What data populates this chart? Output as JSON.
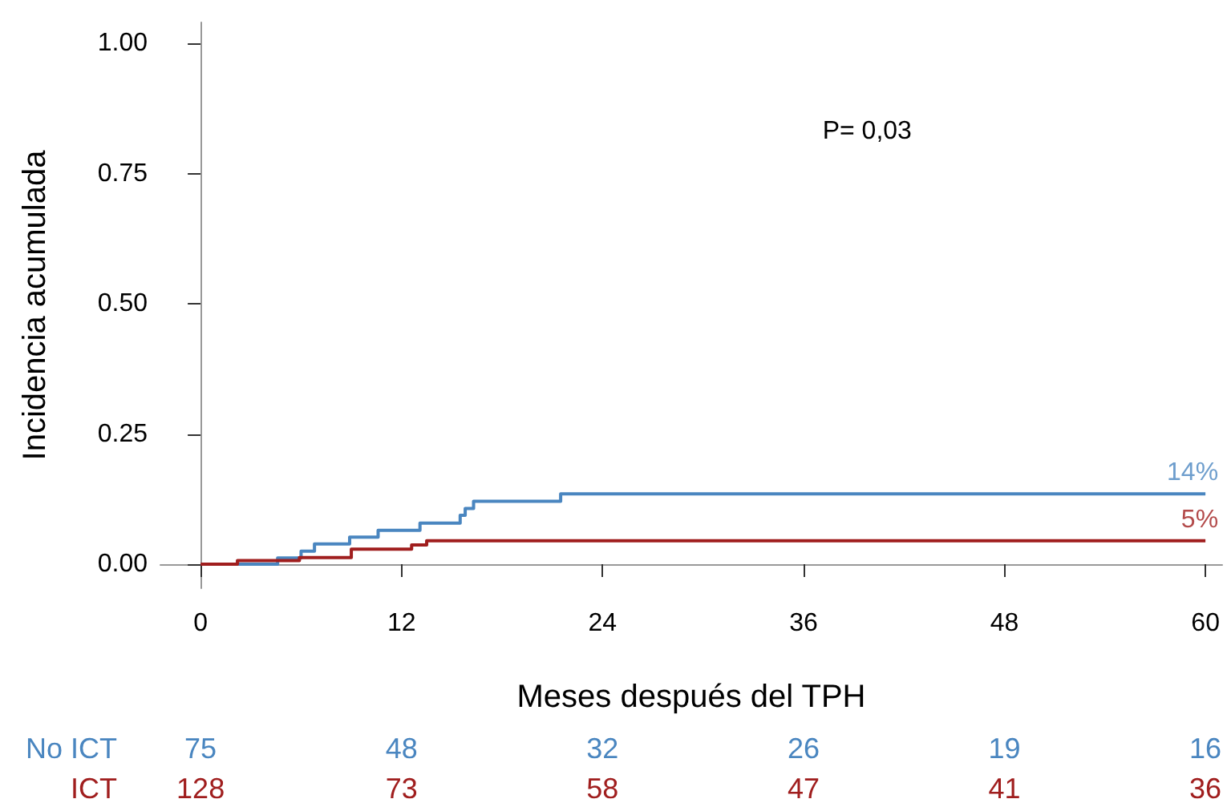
{
  "chart_data": {
    "type": "step",
    "xlabel": "Meses después del TPH",
    "ylabel": "Incidencia acumulada",
    "xlim": [
      -2.4,
      61
    ],
    "xticks": [
      0,
      12,
      24,
      36,
      48,
      60
    ],
    "ylim": [
      -0.046,
      1.04
    ],
    "yticks": [
      {
        "value": 0,
        "label": "0.00"
      },
      {
        "value": 0.25,
        "label": "0.25"
      },
      {
        "value": 0.5,
        "label": "0.50"
      },
      {
        "value": 0.75,
        "label": "0.75"
      },
      {
        "value": 1,
        "label": "1.00"
      }
    ],
    "grid": false,
    "legend": false,
    "marker": "none",
    "line_style": "solid",
    "series": [
      {
        "name": "No ICT",
        "color": "#4a86c0",
        "x": [
          0,
          4.6,
          6.0,
          6.8,
          8.9,
          10.6,
          13.1,
          15.5,
          15.8,
          16.3,
          21.5,
          60
        ],
        "values": [
          0,
          0.012,
          0.025,
          0.039,
          0.052,
          0.065,
          0.079,
          0.094,
          0.107,
          0.121,
          0.135,
          0.135
        ]
      },
      {
        "name": "ICT",
        "color": "#a01e1e",
        "x": [
          0,
          2.2,
          5.9,
          9.0,
          12.6,
          13.5,
          60
        ],
        "values": [
          0,
          0.007,
          0.013,
          0.029,
          0.037,
          0.045,
          0.045
        ]
      }
    ],
    "annotations": [
      "P= 0,03",
      {
        "text": "14%",
        "x": 60,
        "y": 0.135
      },
      {
        "text": "5%",
        "x": 60,
        "y": 0.045
      },
      "75",
      "48",
      "32",
      "26",
      "19",
      "16",
      "128",
      "73",
      "58",
      "47",
      "41",
      "36"
    ]
  }
}
